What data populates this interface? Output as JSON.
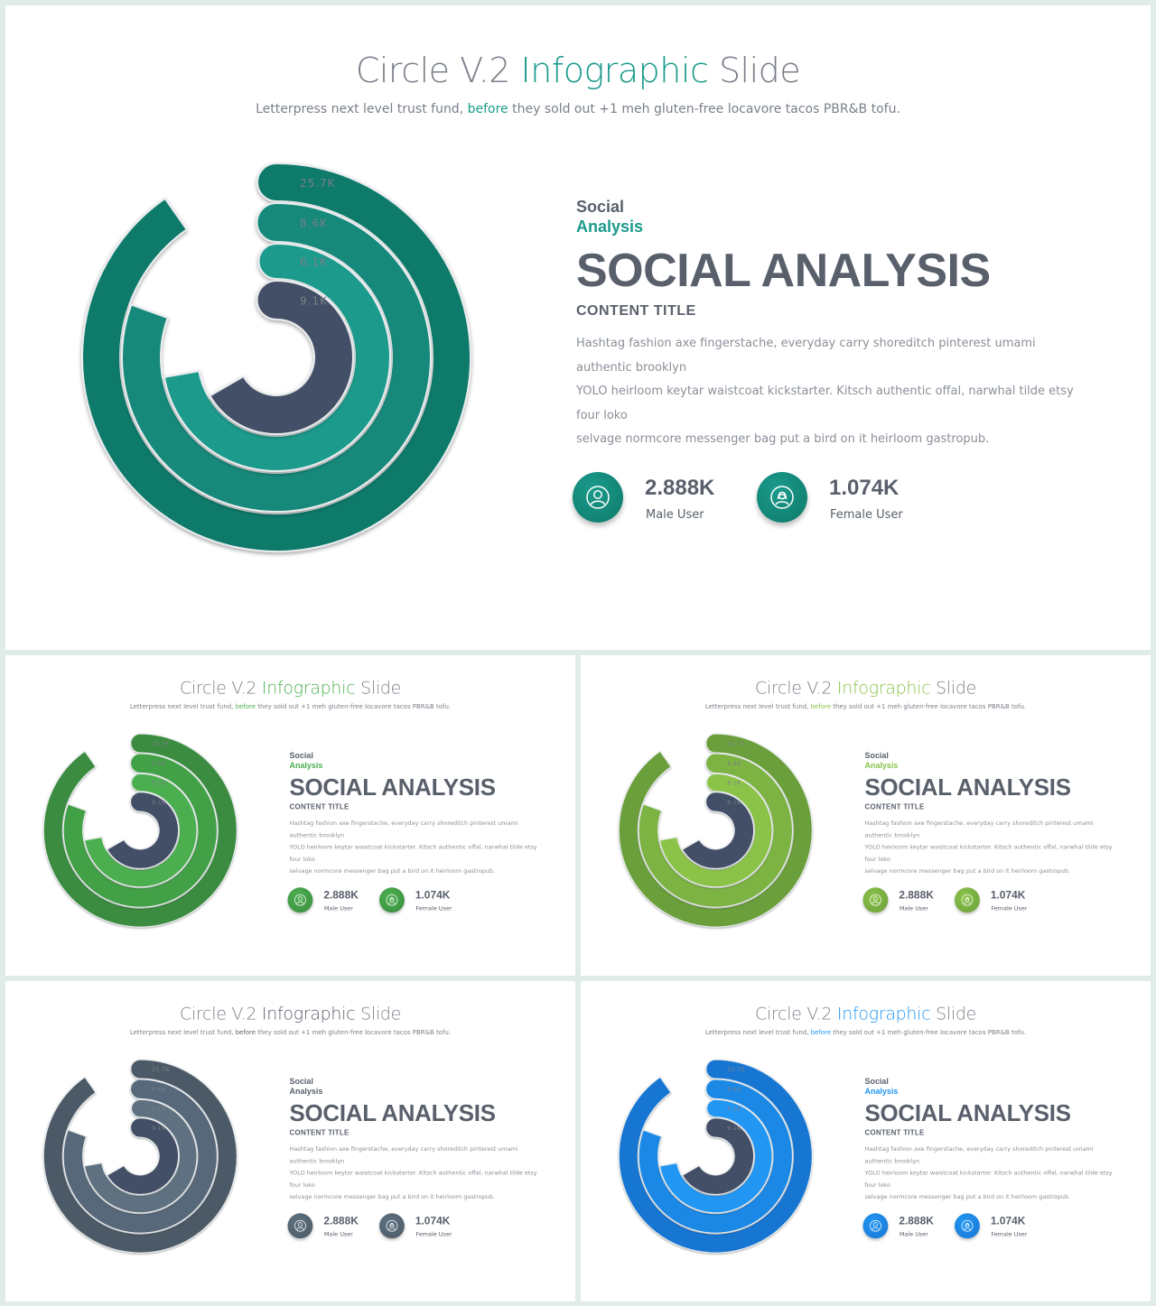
{
  "slides": [
    {
      "theme": {
        "accent": "#1a9a8b",
        "ring1": "#0f7a6a",
        "ring2": "#12897a",
        "ring3": "#1a9a8b",
        "inner": "#435066"
      }
    },
    {
      "theme": {
        "accent": "#4caf50",
        "ring1": "#3a8c3f",
        "ring2": "#43a047",
        "ring3": "#4caf50",
        "inner": "#435066"
      }
    },
    {
      "theme": {
        "accent": "#8bc34a",
        "ring1": "#6a9f3a",
        "ring2": "#7cb342",
        "ring3": "#8bc34a",
        "inner": "#435066"
      }
    },
    {
      "theme": {
        "accent": "#59606b",
        "ring1": "#4b5a66",
        "ring2": "#56687a",
        "ring3": "#5f7180",
        "inner": "#435066"
      }
    },
    {
      "theme": {
        "accent": "#2196f3",
        "ring1": "#1976d2",
        "ring2": "#1e88e5",
        "ring3": "#2196f3",
        "inner": "#435066"
      }
    }
  ],
  "title_pre": "Circle V.2",
  "title_accent": "Infographic",
  "title_post": "Slide",
  "subtitle_pre": "Letterpress next level trust fund,",
  "subtitle_accent": "before",
  "subtitle_post": "they sold out +1 meh gluten-free locavore tacos PBR&B tofu.",
  "kicker_line1": "Social",
  "kicker_line2": "Analysis",
  "heading": "SOCIAL ANALYSIS",
  "content_title": "CONTENT TITLE",
  "body_lines": [
    "Hashtag fashion axe fingerstache, everyday carry shoreditch pinterest umami authentic brooklyn",
    "YOLO heirloom keytar waistcoat kickstarter. Kitsch authentic offal, narwhal tilde etsy four loko",
    "selvage normcore messenger bag put a bird on it heirloom gastropub."
  ],
  "stats": [
    {
      "value": "2.888K",
      "label": "Male User",
      "icon": "male-user-icon"
    },
    {
      "value": "1.074K",
      "label": "Female User",
      "icon": "female-user-icon"
    }
  ],
  "chart_data": {
    "type": "radial-bar",
    "categories": [
      "25.7K",
      "8.6K",
      "6.1K",
      "9.1K"
    ],
    "values": [
      25.7,
      8.6,
      6.1,
      9.1
    ],
    "unit": "K",
    "title": "",
    "arc_degrees": [
      325,
      290,
      260,
      240
    ]
  }
}
